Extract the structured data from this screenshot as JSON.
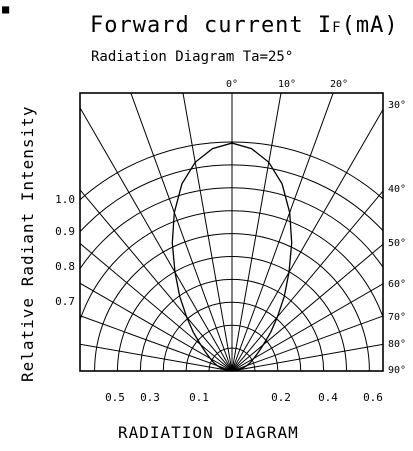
{
  "corner_mark": "■",
  "chart_data": {
    "type": "polar-radiation",
    "title": "Forward current IF(mA)",
    "title_main": "Forward current I",
    "title_sub_script": "F",
    "title_tail": "(mA)",
    "subtitle": "Radiation Diagram Ta=25°",
    "ylabel": "Relative Radiant Intensity",
    "xlabel": "RADIATION DIAGRAM",
    "angle_labels_top": [
      "0°",
      "10°",
      "20°"
    ],
    "angle_labels_right": [
      "30°",
      "40°",
      "50°",
      "60°",
      "70°",
      "80°",
      "90°"
    ],
    "intensity_labels_left": [
      "1.0",
      "0.9",
      "0.8",
      "0.7"
    ],
    "bottom_labels_left": [
      "0.5",
      "0.3",
      "0.1"
    ],
    "bottom_labels_right": [
      "0.2",
      "0.4",
      "0.6"
    ],
    "grid_angles_deg": [
      -80,
      -70,
      -60,
      -50,
      -40,
      -30,
      -20,
      -10,
      0,
      10,
      20,
      30,
      40,
      50,
      60,
      70,
      80
    ],
    "grid_radii": [
      0.1,
      0.2,
      0.3,
      0.4,
      0.5,
      0.6,
      0.7,
      0.8,
      0.9,
      1.0
    ],
    "pattern": {
      "angle_deg": [
        0,
        5,
        10,
        15,
        20,
        25,
        30,
        35,
        40,
        45,
        50,
        55,
        60,
        65,
        70,
        75,
        80,
        85,
        90
      ],
      "relative_intensity": [
        1.0,
        0.98,
        0.93,
        0.85,
        0.74,
        0.62,
        0.5,
        0.4,
        0.31,
        0.24,
        0.18,
        0.14,
        0.11,
        0.09,
        0.07,
        0.05,
        0.03,
        0.015,
        0.0
      ]
    }
  }
}
